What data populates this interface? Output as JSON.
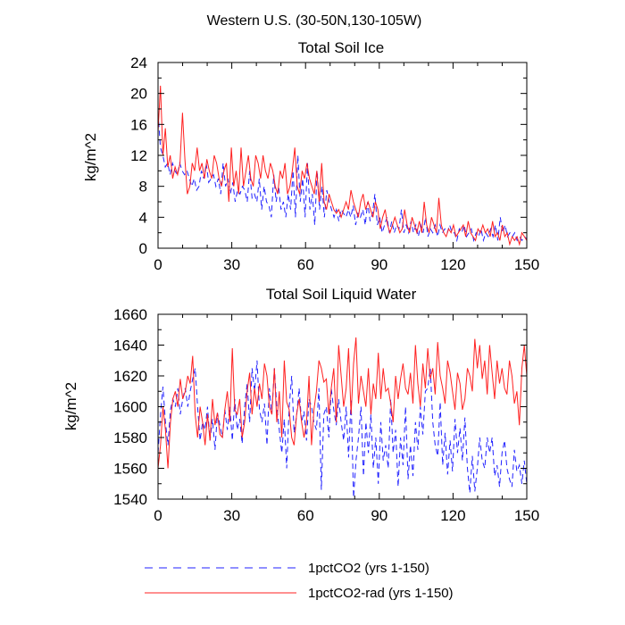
{
  "figure_title": "Western U.S. (30-50N,130-105W)",
  "colors": {
    "series_1": "#2020ff",
    "series_2": "#ff2020",
    "axis": "#000000"
  },
  "legend": [
    {
      "label": "1pctCO2 (yrs 1-150)",
      "style": "dashed",
      "color": "#2020ff"
    },
    {
      "label": "1pctCO2-rad (yrs 1-150)",
      "style": "solid",
      "color": "#ff2020"
    }
  ],
  "chart_data": [
    {
      "type": "line",
      "title": "Total Soil Ice",
      "xlabel": "",
      "ylabel": "kg/m^2",
      "xlim": [
        0,
        150
      ],
      "ylim": [
        0,
        24
      ],
      "xticks": [
        0,
        30,
        60,
        90,
        120,
        150
      ],
      "yticks": [
        0,
        4,
        8,
        12,
        16,
        20,
        24
      ],
      "grid": false,
      "series": [
        {
          "name": "1pctCO2 (yrs 1-150)",
          "style": "dashed",
          "color": "#2020ff",
          "values": [
            17.5,
            13,
            12,
            10.5,
            11,
            9.5,
            11,
            10,
            9.5,
            11,
            10,
            9.5,
            10,
            9,
            8,
            9,
            7.5,
            8,
            10,
            9,
            11,
            8.5,
            9,
            9.5,
            8,
            9,
            7,
            11,
            8,
            9,
            7,
            8.5,
            6,
            7.5,
            7,
            8,
            7.5,
            6,
            10,
            6.5,
            7,
            6,
            9,
            5,
            8,
            6,
            5.5,
            4,
            9.5,
            6,
            8,
            5,
            6,
            4,
            7,
            5,
            10,
            4,
            12,
            6,
            9,
            4,
            11,
            5,
            7,
            3,
            10,
            5,
            8,
            4,
            7.5,
            6,
            5,
            4,
            5,
            3.5,
            5,
            4.5,
            4,
            5,
            4,
            5.5,
            3,
            4.5,
            4,
            5,
            3,
            6,
            3.5,
            4.5,
            7,
            3,
            4,
            2,
            3,
            4,
            2,
            3.5,
            2,
            3,
            2.5,
            5,
            2,
            3,
            2,
            3.5,
            2,
            3,
            1.5,
            3,
            2,
            4,
            1.5,
            2.5,
            2,
            3,
            1.5,
            3,
            2,
            2.5,
            2,
            3,
            2,
            2,
            1,
            2.5,
            2,
            3,
            1.5,
            2,
            2.5,
            1,
            2,
            1.5,
            2.5,
            1,
            2,
            1.5,
            2.5,
            1.5,
            3,
            1,
            4,
            2,
            3,
            1.5,
            2,
            1.5,
            2,
            1,
            1.5,
            1,
            1.5,
            1.2
          ]
        },
        {
          "name": "1pctCO2-rad (yrs 1-150)",
          "style": "solid",
          "color": "#ff2020",
          "values": [
            15,
            21,
            12,
            15.5,
            10.5,
            12,
            9,
            10.5,
            9.5,
            11,
            17.5,
            11.5,
            7,
            8,
            11,
            10,
            13,
            10,
            11,
            9,
            11.5,
            10,
            9,
            12,
            11,
            9,
            8,
            10,
            11,
            6,
            13,
            8,
            10,
            7,
            13,
            8,
            10,
            12,
            9,
            8,
            12,
            11,
            9,
            12,
            10,
            9,
            11,
            10,
            8,
            7,
            10,
            9,
            11,
            7,
            8,
            10,
            13,
            8,
            7,
            10,
            9,
            11,
            9,
            8,
            7,
            10,
            6,
            11,
            6,
            5,
            7,
            6,
            5,
            4.5,
            5,
            4,
            5,
            6,
            5,
            7.5,
            6,
            5,
            4,
            6,
            7,
            5,
            6,
            5,
            4,
            6,
            5,
            2.5,
            4,
            5,
            3,
            2,
            3,
            4,
            3,
            2,
            2.5,
            5,
            3,
            2,
            4,
            3,
            2,
            3.5,
            2,
            6,
            3,
            2,
            4,
            3,
            2,
            6.5,
            3,
            2,
            1.5,
            2.5,
            2,
            3,
            1.5,
            2,
            2.5,
            3,
            1.5,
            3.5,
            2,
            1.5,
            1,
            2.5,
            2,
            3,
            2,
            2.5,
            1.5,
            3.5,
            1.5,
            2,
            1,
            3,
            1.5,
            2,
            0.5,
            1.5,
            1,
            1.5,
            0.5,
            2,
            1.5,
            1
          ]
        }
      ]
    },
    {
      "type": "line",
      "title": "Total Soil Liquid Water",
      "xlabel": "",
      "ylabel": "kg/m^2",
      "xlim": [
        0,
        150
      ],
      "ylim": [
        1540,
        1660
      ],
      "xticks": [
        0,
        30,
        60,
        90,
        120,
        150
      ],
      "yticks": [
        1540,
        1560,
        1580,
        1600,
        1620,
        1640,
        1660
      ],
      "grid": false,
      "series": [
        {
          "name": "1pctCO2 (yrs 1-150)",
          "style": "dashed",
          "color": "#2020ff",
          "values": [
            1570,
            1595,
            1613,
            1590,
            1575,
            1598,
            1605,
            1600,
            1612,
            1595,
            1605,
            1612,
            1600,
            1610,
            1618,
            1625,
            1600,
            1578,
            1590,
            1585,
            1600,
            1578,
            1592,
            1572,
            1596,
            1588,
            1580,
            1598,
            1585,
            1600,
            1578,
            1605,
            1585,
            1592,
            1576,
            1600,
            1615,
            1590,
            1625,
            1610,
            1630,
            1598,
            1590,
            1602,
            1575,
            1612,
            1595,
            1625,
            1600,
            1585,
            1570,
            1592,
            1560,
            1600,
            1620,
            1583,
            1594,
            1612,
            1590,
            1597,
            1578,
            1605,
            1600,
            1590,
            1585,
            1612,
            1546,
            1595,
            1600,
            1580,
            1612,
            1598,
            1588,
            1605,
            1590,
            1578,
            1600,
            1567,
            1605,
            1541,
            1565,
            1580,
            1600,
            1555,
            1590,
            1570,
            1595,
            1560,
            1580,
            1550,
            1590,
            1565,
            1575,
            1560,
            1605,
            1570,
            1585,
            1548,
            1580,
            1562,
            1600,
            1553,
            1575,
            1555,
            1590,
            1572,
            1600,
            1582,
            1610,
            1612,
            1625,
            1590,
            1575,
            1568,
            1603,
            1562,
            1583,
            1556,
            1578,
            1558,
            1592,
            1570,
            1586,
            1565,
            1593,
            1560,
            1544,
            1568,
            1545,
            1560,
            1580,
            1565,
            1560,
            1580,
            1570,
            1580,
            1555,
            1562,
            1548,
            1570,
            1578,
            1560,
            1553,
            1548,
            1572,
            1558,
            1562,
            1550,
            1565,
            1550
          ]
        },
        {
          "name": "1pctCO2-rad (yrs 1-150)",
          "style": "solid",
          "color": "#ff2020",
          "values": [
            1560,
            1575,
            1600,
            1585,
            1560,
            1590,
            1605,
            1610,
            1600,
            1618,
            1605,
            1610,
            1620,
            1615,
            1633,
            1595,
            1580,
            1600,
            1590,
            1575,
            1595,
            1578,
            1605,
            1588,
            1596,
            1582,
            1580,
            1598,
            1610,
            1590,
            1638,
            1598,
            1595,
            1605,
            1580,
            1590,
            1610,
            1622,
            1595,
            1612,
            1600,
            1615,
            1605,
            1628,
            1620,
            1600,
            1595,
            1625,
            1590,
            1610,
            1580,
            1630,
            1603,
            1598,
            1580,
            1575,
            1595,
            1605,
            1590,
            1580,
            1590,
            1620,
            1575,
            1598,
            1610,
            1630,
            1625,
            1616,
            1618,
            1595,
            1612,
            1625,
            1590,
            1640,
            1620,
            1600,
            1612,
            1638,
            1595,
            1628,
            1645,
            1602,
            1620,
            1610,
            1600,
            1625,
            1595,
            1615,
            1605,
            1635,
            1605,
            1625,
            1610,
            1612,
            1602,
            1590,
            1620,
            1605,
            1618,
            1628,
            1612,
            1608,
            1622,
            1602,
            1640,
            1615,
            1600,
            1628,
            1612,
            1638,
            1618,
            1625,
            1608,
            1642,
            1620,
            1612,
            1602,
            1630,
            1622,
            1610,
            1598,
            1622,
            1615,
            1598,
            1605,
            1625,
            1620,
            1610,
            1644,
            1625,
            1640,
            1618,
            1630,
            1608,
            1640,
            1622,
            1605,
            1630,
            1615,
            1625,
            1612,
            1608,
            1630,
            1620,
            1602,
            1610,
            1588,
            1625,
            1640,
            1620
          ]
        }
      ]
    }
  ]
}
